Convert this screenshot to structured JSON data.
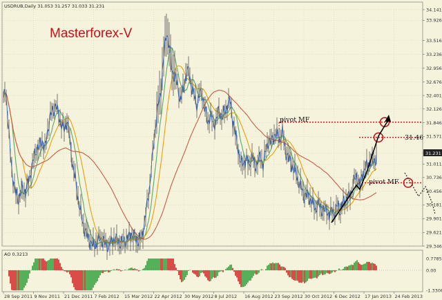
{
  "chart_data": [
    {
      "type": "candlestick",
      "header": "USDRUB,Daily  31.053 31.257 31.033 31.231",
      "watermark": "Masterforex-V",
      "y_ticks": [
        "34.141",
        "33.926",
        "33.516",
        "33.236",
        "32.956",
        "32.676",
        "32.401",
        "32.126",
        "31.846",
        "31.571",
        "31.231",
        "31.011",
        "30.736",
        "30.456",
        "30.181",
        "29.901",
        "29.621",
        "29.346"
      ],
      "ylim": [
        29.346,
        34.141
      ],
      "current_price": "31.231",
      "x_ticks": [
        "28 Sep 2011",
        "9 Nov 2011",
        "21 Dec 2011",
        "7 Feb 2012",
        "15 Mar 2012",
        "22 Apr 2012",
        "30 May 2012",
        "8 Jul 2012",
        "16 Aug 2012",
        "23 Sep 2012",
        "30 Oct 2012",
        "6 Dec 2012",
        "17 Jan 2013",
        "24 Feb 2013"
      ],
      "close_path": [
        [
          0,
          32.3
        ],
        [
          3,
          32.55
        ],
        [
          6,
          32.0
        ],
        [
          9,
          31.4
        ],
        [
          12,
          30.9
        ],
        [
          15,
          30.6
        ],
        [
          18,
          30.4
        ],
        [
          22,
          30.3
        ],
        [
          27,
          30.5
        ],
        [
          32,
          30.45
        ],
        [
          37,
          30.7
        ],
        [
          42,
          31.0
        ],
        [
          47,
          31.3
        ],
        [
          52,
          31.35
        ],
        [
          56,
          31.5
        ],
        [
          60,
          31.3
        ],
        [
          64,
          31.7
        ],
        [
          68,
          32.0
        ],
        [
          72,
          32.1
        ],
        [
          76,
          32.2
        ],
        [
          80,
          32.0
        ],
        [
          84,
          31.8
        ],
        [
          88,
          31.7
        ],
        [
          92,
          31.9
        ],
        [
          96,
          31.5
        ],
        [
          100,
          31.0
        ],
        [
          104,
          30.7
        ],
        [
          108,
          30.3
        ],
        [
          112,
          30.0
        ],
        [
          116,
          29.75
        ],
        [
          120,
          29.6
        ],
        [
          125,
          29.45
        ],
        [
          130,
          29.35
        ],
        [
          135,
          29.4
        ],
        [
          140,
          29.5
        ],
        [
          145,
          29.45
        ],
        [
          150,
          29.35
        ],
        [
          155,
          29.4
        ],
        [
          160,
          29.5
        ],
        [
          165,
          29.45
        ],
        [
          170,
          29.4
        ],
        [
          175,
          29.45
        ],
        [
          180,
          29.5
        ],
        [
          185,
          29.6
        ],
        [
          190,
          29.5
        ],
        [
          195,
          29.45
        ],
        [
          200,
          29.5
        ],
        [
          204,
          29.8
        ],
        [
          208,
          30.2
        ],
        [
          212,
          30.6
        ],
        [
          216,
          31.2
        ],
        [
          220,
          31.8
        ],
        [
          224,
          32.2
        ],
        [
          228,
          32.5
        ],
        [
          232,
          33.2
        ],
        [
          236,
          33.7
        ],
        [
          240,
          33.4
        ],
        [
          244,
          32.9
        ],
        [
          248,
          32.8
        ],
        [
          252,
          32.6
        ],
        [
          256,
          32.3
        ],
        [
          260,
          32.5
        ],
        [
          264,
          32.8
        ],
        [
          268,
          32.9
        ],
        [
          272,
          32.6
        ],
        [
          276,
          32.4
        ],
        [
          280,
          32.2
        ],
        [
          284,
          32.45
        ],
        [
          288,
          32.4
        ],
        [
          292,
          32.1
        ],
        [
          296,
          31.85
        ],
        [
          300,
          32.0
        ],
        [
          304,
          31.8
        ],
        [
          308,
          31.9
        ],
        [
          312,
          32.1
        ],
        [
          316,
          31.95
        ],
        [
          320,
          32.05
        ],
        [
          324,
          32.2
        ],
        [
          328,
          32.3
        ],
        [
          332,
          31.9
        ],
        [
          336,
          31.6
        ],
        [
          340,
          31.3
        ],
        [
          344,
          31.0
        ],
        [
          348,
          31.05
        ],
        [
          352,
          31.1
        ],
        [
          356,
          31.0
        ],
        [
          360,
          31.2
        ],
        [
          364,
          30.95
        ],
        [
          368,
          31.05
        ],
        [
          372,
          31.15
        ],
        [
          376,
          31.0
        ],
        [
          380,
          31.3
        ],
        [
          384,
          31.5
        ],
        [
          388,
          31.45
        ],
        [
          392,
          31.6
        ],
        [
          396,
          31.6
        ],
        [
          400,
          31.5
        ],
        [
          404,
          31.65
        ],
        [
          408,
          31.3
        ],
        [
          412,
          31.15
        ],
        [
          416,
          31.05
        ],
        [
          420,
          30.9
        ],
        [
          424,
          30.8
        ],
        [
          428,
          30.6
        ],
        [
          432,
          30.5
        ],
        [
          436,
          30.35
        ],
        [
          440,
          30.4
        ],
        [
          444,
          30.3
        ],
        [
          448,
          30.2
        ],
        [
          452,
          30.1
        ],
        [
          456,
          30.2
        ],
        [
          460,
          30.1
        ],
        [
          464,
          30.05
        ],
        [
          468,
          30.1
        ],
        [
          472,
          29.95
        ],
        [
          476,
          30.1
        ],
        [
          480,
          30.0
        ],
        [
          484,
          30.2
        ],
        [
          488,
          30.05
        ],
        [
          492,
          30.25
        ],
        [
          496,
          30.3
        ],
        [
          500,
          30.35
        ],
        [
          504,
          30.45
        ],
        [
          508,
          30.7
        ],
        [
          512,
          30.75
        ],
        [
          516,
          30.55
        ],
        [
          520,
          30.8
        ],
        [
          524,
          30.95
        ],
        [
          528,
          31.0
        ],
        [
          532,
          31.1
        ],
        [
          536,
          31.05
        ],
        [
          540,
          31.15
        ]
      ],
      "series": [
        {
          "name": "",
          "color": "#1b5fd6",
          "role": "fast-ma",
          "offset": 0.0,
          "smooth": 1
        },
        {
          "name": "",
          "color": "#5aa866",
          "role": "ma-green",
          "smooth": 4
        },
        {
          "name": "",
          "color": "#e2a00c",
          "role": "ma-orange",
          "smooth": 9
        },
        {
          "name": "",
          "color": "#c55d48",
          "role": "ma-red",
          "smooth": 30
        }
      ],
      "annotations": {
        "pivot_top_label": "pivot MF",
        "pivot_bottom_label": "pivot MF",
        "price_label": "31.46",
        "pivot_top_price": 31.86,
        "target_price": 31.55,
        "pivot_bottom_price": 30.63
      },
      "colors": {
        "background": "#f6f3dc",
        "candle": "#555555",
        "grid": "#cfccb4",
        "annotation": "#c0141c",
        "arrow": "#000000"
      }
    },
    {
      "type": "histogram",
      "header": "AO 0.3213",
      "y_ticks": [
        "0.7785",
        "0.00",
        "-1.3306"
      ],
      "ylim": [
        -1.3306,
        0.7785
      ],
      "colors": {
        "up": "#2e9f3a",
        "down": "#d32222"
      }
    }
  ]
}
